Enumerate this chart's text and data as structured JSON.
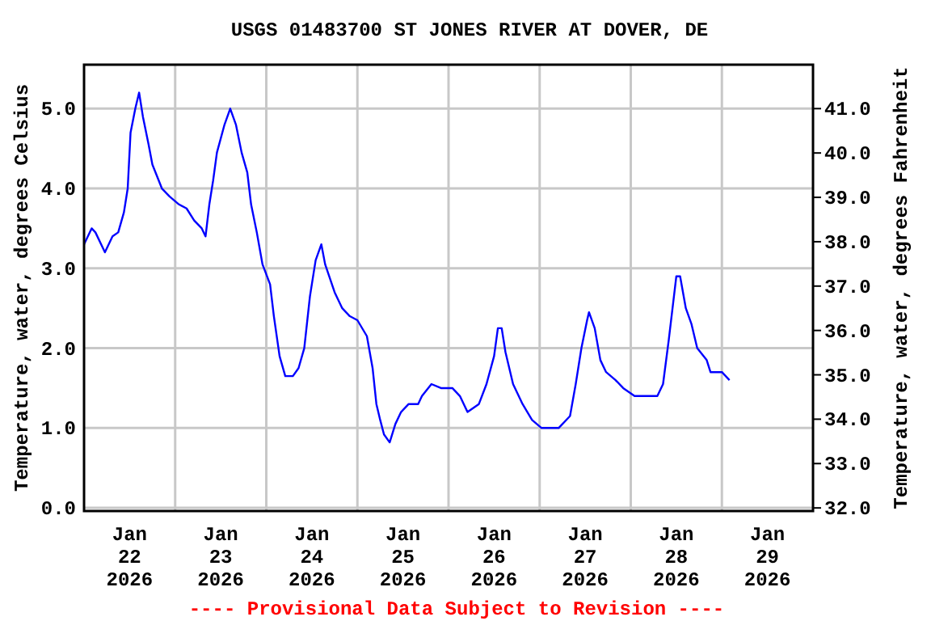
{
  "chart_data": {
    "type": "line",
    "title": "USGS 01483700 ST JONES RIVER AT DOVER, DE",
    "ylabel": "Temperature, water, degrees Celsius",
    "y2label": "Temperature, water, degrees Fahrenheit",
    "annotations": [
      "---- Provisional Data Subject to Revision ----"
    ],
    "xlim": [
      "2026-01-22T00:00",
      "2026-01-30T00:00"
    ],
    "xticks": [
      {
        "value": "2026-01-22T12:00",
        "label": "Jan\n22\n2026"
      },
      {
        "value": "2026-01-23T00:00",
        "label": null
      },
      {
        "value": "2026-01-23T12:00",
        "label": "Jan\n23\n2026"
      },
      {
        "value": "2026-01-24T00:00",
        "label": null
      },
      {
        "value": "2026-01-24T12:00",
        "label": "Jan\n24\n2026"
      },
      {
        "value": "2026-01-25T00:00",
        "label": null
      },
      {
        "value": "2026-01-25T12:00",
        "label": "Jan\n25\n2026"
      },
      {
        "value": "2026-01-26T00:00",
        "label": null
      },
      {
        "value": "2026-01-26T12:00",
        "label": "Jan\n26\n2026"
      },
      {
        "value": "2026-01-27T00:00",
        "label": null
      },
      {
        "value": "2026-01-27T12:00",
        "label": "Jan\n27\n2026"
      },
      {
        "value": "2026-01-28T00:00",
        "label": null
      },
      {
        "value": "2026-01-28T12:00",
        "label": "Jan\n28\n2026"
      },
      {
        "value": "2026-01-29T00:00",
        "label": null
      },
      {
        "value": "2026-01-29T12:00",
        "label": "Jan\n29\n2026"
      }
    ],
    "ylim": [
      -0.04,
      5.55
    ],
    "yticks": [
      {
        "value": 0,
        "label": "0.0"
      },
      {
        "value": 1,
        "label": "1.0"
      },
      {
        "value": 2,
        "label": "2.0"
      },
      {
        "value": 3,
        "label": "3.0"
      },
      {
        "value": 4,
        "label": "4.0"
      },
      {
        "value": 5,
        "label": "5.0"
      }
    ],
    "y2lim": [
      31.93,
      41.99
    ],
    "y2ticks": [
      {
        "value": 32,
        "label": "32.0"
      },
      {
        "value": 33,
        "label": "33.0"
      },
      {
        "value": 34,
        "label": "34.0"
      },
      {
        "value": 35,
        "label": "35.0"
      },
      {
        "value": 36,
        "label": "36.0"
      },
      {
        "value": 37,
        "label": "37.0"
      },
      {
        "value": 38,
        "label": "38.0"
      },
      {
        "value": 39,
        "label": "39.0"
      },
      {
        "value": 40,
        "label": "40.0"
      },
      {
        "value": 41,
        "label": "41.0"
      }
    ],
    "grid": true,
    "series": [
      {
        "color": "#0000ff",
        "x": [
          "2026-01-22T00:00",
          "2026-01-22T02:00",
          "2026-01-22T03:00",
          "2026-01-22T05:30",
          "2026-01-22T07:30",
          "2026-01-22T09:00",
          "2026-01-22T10:30",
          "2026-01-22T11:30",
          "2026-01-22T12:15",
          "2026-01-22T13:30",
          "2026-01-22T14:30",
          "2026-01-22T15:30",
          "2026-01-22T17:00",
          "2026-01-22T18:00",
          "2026-01-22T20:30",
          "2026-01-22T22:30",
          "2026-01-23T01:00",
          "2026-01-23T03:00",
          "2026-01-23T05:00",
          "2026-01-23T07:00",
          "2026-01-23T08:00",
          "2026-01-23T09:00",
          "2026-01-23T10:00",
          "2026-01-23T11:00",
          "2026-01-23T13:00",
          "2026-01-23T14:30",
          "2026-01-23T16:00",
          "2026-01-23T17:30",
          "2026-01-23T19:00",
          "2026-01-23T20:00",
          "2026-01-23T21:30",
          "2026-01-23T23:00",
          "2026-01-24T01:00",
          "2026-01-24T02:00",
          "2026-01-24T03:30",
          "2026-01-24T05:00",
          "2026-01-24T07:00",
          "2026-01-24T08:30",
          "2026-01-24T10:00",
          "2026-01-24T11:30",
          "2026-01-24T13:00",
          "2026-01-24T14:30",
          "2026-01-24T15:30",
          "2026-01-24T18:00",
          "2026-01-24T20:00",
          "2026-01-24T22:00",
          "2026-01-25T00:00",
          "2026-01-25T02:30",
          "2026-01-25T04:00",
          "2026-01-25T05:00",
          "2026-01-25T06:00",
          "2026-01-25T07:00",
          "2026-01-25T08:30",
          "2026-01-25T10:00",
          "2026-01-25T11:30",
          "2026-01-25T13:30",
          "2026-01-25T16:00",
          "2026-01-25T17:00",
          "2026-01-25T19:30",
          "2026-01-25T22:00",
          "2026-01-26T01:00",
          "2026-01-26T03:00",
          "2026-01-26T05:00",
          "2026-01-26T08:00",
          "2026-01-26T10:00",
          "2026-01-26T12:00",
          "2026-01-26T13:00",
          "2026-01-26T14:00",
          "2026-01-26T15:00",
          "2026-01-26T17:00",
          "2026-01-26T19:30",
          "2026-01-26T22:00",
          "2026-01-27T00:30",
          "2026-01-27T05:00",
          "2026-01-27T08:00",
          "2026-01-27T09:30",
          "2026-01-27T11:00",
          "2026-01-27T12:30",
          "2026-01-27T13:00",
          "2026-01-27T14:30",
          "2026-01-27T16:00",
          "2026-01-27T17:30",
          "2026-01-27T20:00",
          "2026-01-27T22:00",
          "2026-01-28T01:00",
          "2026-01-28T07:00",
          "2026-01-28T08:30",
          "2026-01-28T10:00",
          "2026-01-28T12:00",
          "2026-01-28T13:00",
          "2026-01-28T14:30",
          "2026-01-28T16:00",
          "2026-01-28T17:30",
          "2026-01-28T20:00",
          "2026-01-28T21:00",
          "2026-01-29T00:00",
          "2026-01-29T02:00"
        ],
        "values": [
          3.3,
          3.5,
          3.45,
          3.2,
          3.4,
          3.45,
          3.7,
          4.0,
          4.7,
          5.0,
          5.2,
          4.9,
          4.55,
          4.3,
          4.0,
          3.9,
          3.8,
          3.75,
          3.6,
          3.5,
          3.4,
          3.8,
          4.1,
          4.45,
          4.8,
          5.0,
          4.8,
          4.45,
          4.2,
          3.8,
          3.45,
          3.05,
          2.8,
          2.4,
          1.9,
          1.65,
          1.65,
          1.75,
          2.0,
          2.65,
          3.1,
          3.3,
          3.05,
          2.7,
          2.5,
          2.4,
          2.35,
          2.15,
          1.75,
          1.3,
          1.1,
          0.92,
          0.82,
          1.05,
          1.2,
          1.3,
          1.3,
          1.4,
          1.55,
          1.5,
          1.5,
          1.4,
          1.2,
          1.3,
          1.55,
          1.9,
          2.25,
          2.25,
          1.95,
          1.55,
          1.3,
          1.1,
          1.0,
          1.0,
          1.15,
          1.55,
          2.0,
          2.35,
          2.45,
          2.25,
          1.85,
          1.7,
          1.6,
          1.5,
          1.4,
          1.4,
          1.55,
          2.1,
          2.9,
          2.9,
          2.5,
          2.3,
          2.0,
          1.85,
          1.7,
          1.7,
          1.6
        ]
      }
    ]
  }
}
